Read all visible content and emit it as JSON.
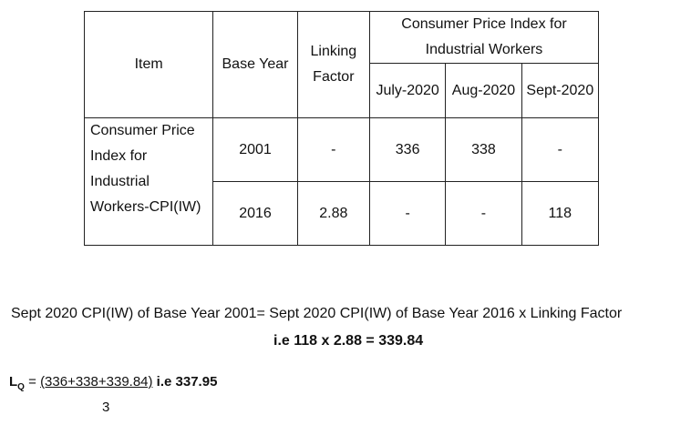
{
  "table": {
    "headers": {
      "item": "Item",
      "base_year": "Base Year",
      "linking_factor": "Linking Factor",
      "cpi_group": "Consumer Price Index for Industrial Workers",
      "months": [
        "July-2020",
        "Aug-2020",
        "Sept-2020"
      ]
    },
    "item_label": "Consumer Price Index for Industrial Workers-CPI(IW)",
    "rows": [
      {
        "base_year": "2001",
        "linking_factor": "-",
        "values": [
          "336",
          "338",
          "-"
        ]
      },
      {
        "base_year": "2016",
        "linking_factor": "2.88",
        "values": [
          "-",
          "-",
          "118"
        ]
      }
    ]
  },
  "formula": {
    "statement": "Sept 2020 CPI(IW) of Base Year 2001= Sept 2020 CPI(IW) of Base Year 2016 x Linking Factor",
    "result": "i.e 118 x 2.88 = 339.84"
  },
  "lq": {
    "symbol": "L",
    "subscript": "Q",
    "equals": " = ",
    "numerator": "(336+338+339.84)",
    "answer": " i.e 337.95",
    "denominator": "3"
  }
}
